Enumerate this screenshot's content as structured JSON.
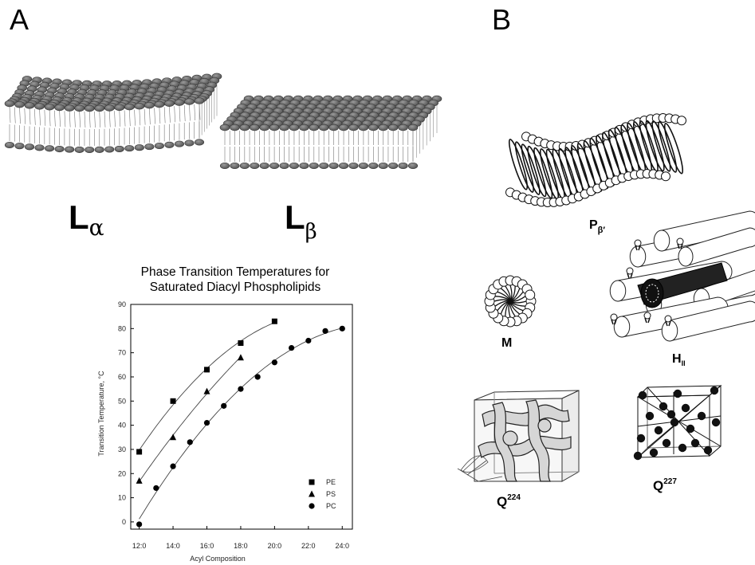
{
  "panels": {
    "a": "A",
    "b": "B"
  },
  "phases": {
    "l_alpha": {
      "main": "L",
      "sub": "α"
    },
    "l_beta": {
      "main": "L",
      "sub": "β"
    },
    "p_beta": {
      "main": "P",
      "sub": "β′"
    },
    "micelle": {
      "main": "M"
    },
    "hexagonal": {
      "main": "H",
      "sub": "II"
    },
    "q224": {
      "main": "Q",
      "sup": "224"
    },
    "q227": {
      "main": "Q",
      "sup": "227"
    }
  },
  "chart_data": {
    "type": "scatter",
    "title_line1": "Phase Transition Temperatures for",
    "title_line2": "Saturated Diacyl Phospholipids",
    "xlabel": "Acyl Composition",
    "ylabel": "Transition Temperature, °C",
    "xlim": [
      11.5,
      24.6
    ],
    "ylim": [
      -3,
      90
    ],
    "xticks": [
      "12:0",
      "14:0",
      "16:0",
      "18:0",
      "20:0",
      "22:0",
      "24:0"
    ],
    "yticks": [
      "0",
      "10",
      "20",
      "30",
      "40",
      "50",
      "60",
      "70",
      "80",
      "90"
    ],
    "legend_position": "bottom-right",
    "series": [
      {
        "name": "PE",
        "marker": "square",
        "x": [
          12,
          14,
          16,
          18,
          20
        ],
        "y": [
          29,
          50,
          63,
          74,
          83
        ]
      },
      {
        "name": "PS",
        "marker": "triangle",
        "x": [
          12,
          14,
          16,
          18
        ],
        "y": [
          17,
          35,
          54,
          68
        ]
      },
      {
        "name": "PC",
        "marker": "circle",
        "x": [
          12,
          13,
          14,
          15,
          16,
          17,
          18,
          19,
          20,
          21,
          22,
          23,
          24
        ],
        "y": [
          -1,
          14,
          23,
          33,
          41,
          48,
          55,
          60,
          66,
          72,
          75,
          79,
          80
        ]
      }
    ]
  }
}
